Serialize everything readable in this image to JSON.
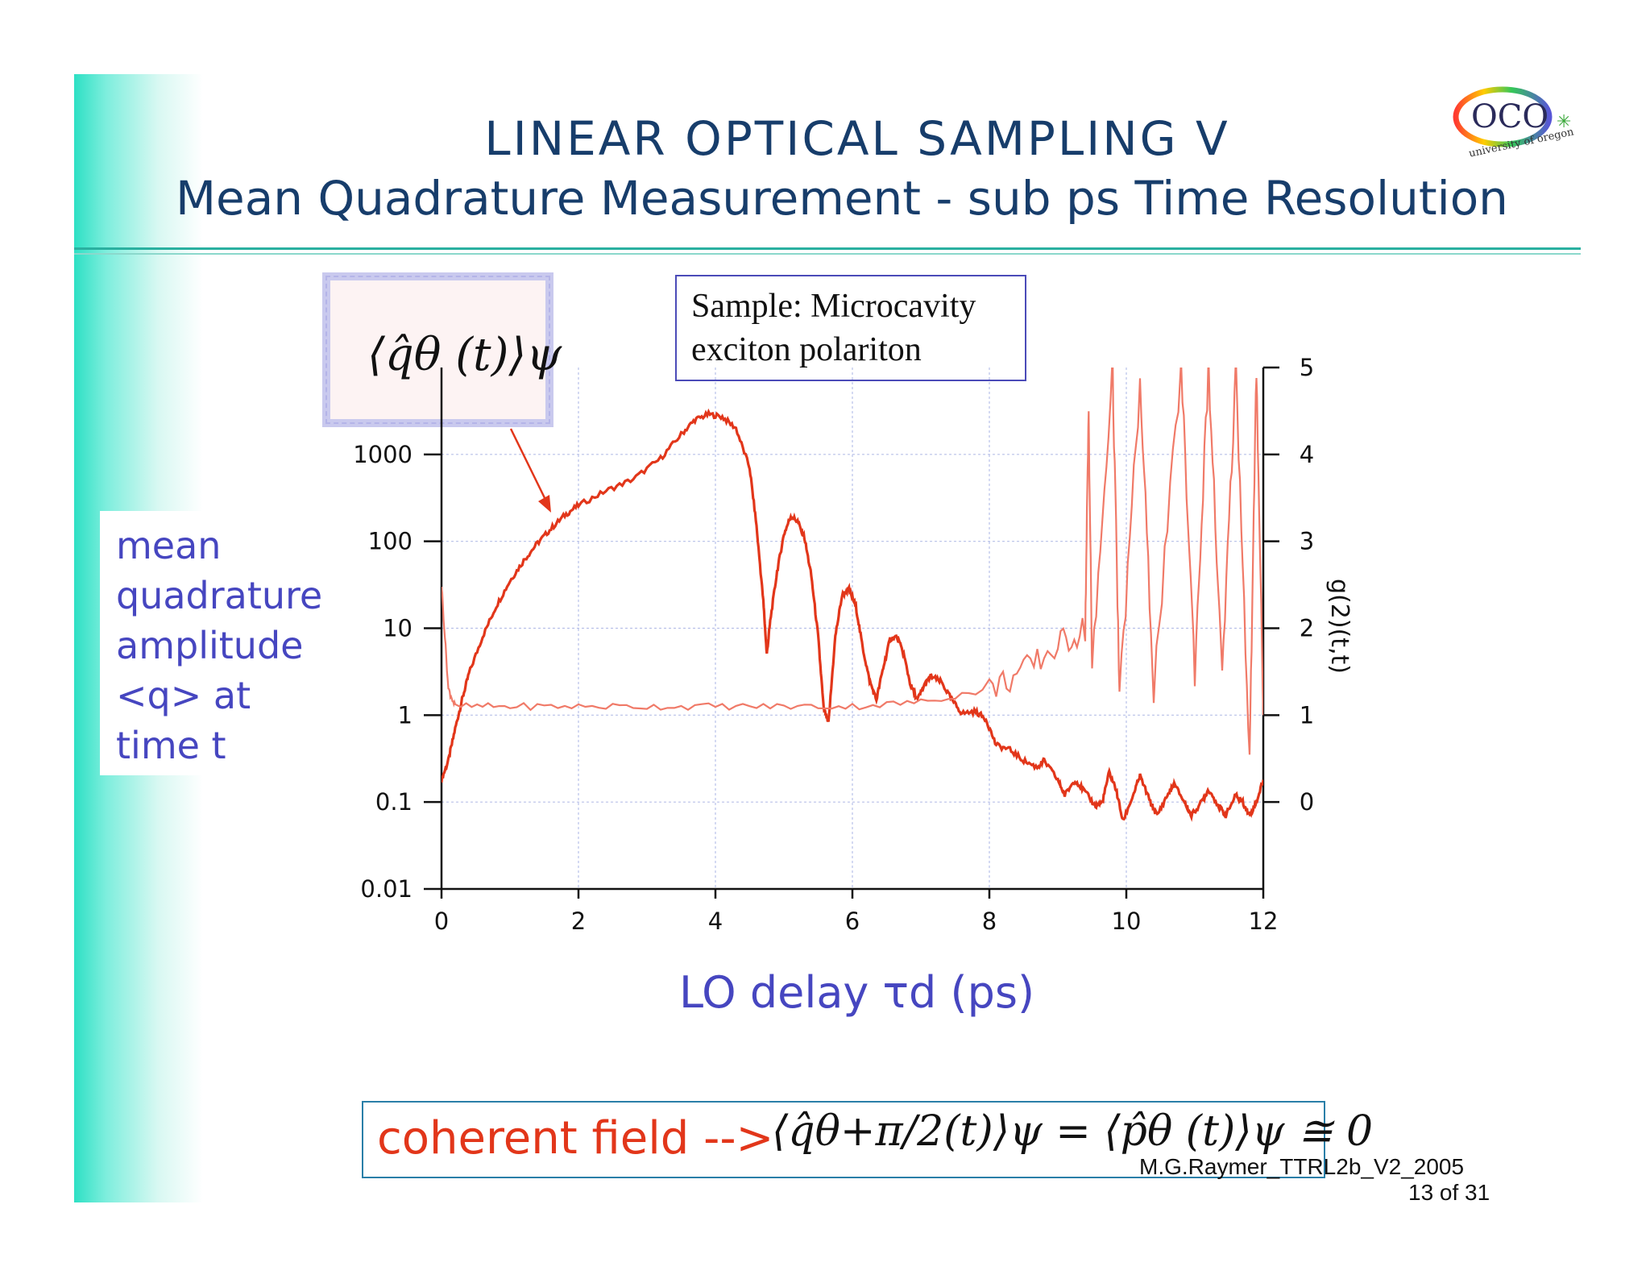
{
  "slide": {
    "title_line1": "LINEAR  OPTICAL  SAMPLING  V",
    "title_line2": "Mean Quadrature Measurement - sub ps Time Resolution",
    "logo_text": "OCO",
    "logo_subtext": "university of oregon",
    "equation_label": "⟨q̂θ (t)⟩ψ",
    "sample_line1": "Sample: Microcavity",
    "sample_line2": "exciton polariton",
    "y_label_lines": [
      "mean",
      "quadrature",
      "amplitude",
      "<q> at",
      "time t"
    ],
    "x_label": "LO delay τd (ps)",
    "right_axis_label": "g(2)(t,t)",
    "coherent_text": "coherent field -->",
    "coherent_equation": "⟨q̂θ+π/2(t)⟩ψ = ⟨p̂θ (t)⟩ψ ≅ 0",
    "footer_line1": "M.G.Raymer_TTRL2b_V2_2005",
    "footer_line2": "13 of 31"
  },
  "colors": {
    "title": "#173d6b",
    "label_blue": "#4646c0",
    "curve_red": "#e2361a",
    "curve_light": "#f07a68",
    "accent_teal": "#2de0c4"
  },
  "chart_data": {
    "type": "line",
    "x": {
      "label": "LO delay τd (ps)",
      "range": [
        0,
        12
      ],
      "ticks": [
        0,
        2,
        4,
        6,
        8,
        10,
        12
      ]
    },
    "y_left": {
      "label": "mean quadrature amplitude <q> at time t",
      "scale": "log",
      "range": [
        0.01,
        10000
      ],
      "ticks": [
        "0.01",
        "0.1",
        "1",
        "10",
        "100",
        "1000"
      ]
    },
    "y_right": {
      "label": "g(2)(t,t)",
      "range": [
        -1,
        5
      ],
      "ticks": [
        "0",
        "1",
        "2",
        "3",
        "4",
        "5"
      ]
    },
    "series": [
      {
        "axis": "left",
        "points": [
          [
            0,
            0.18
          ],
          [
            0.1,
            0.3
          ],
          [
            0.2,
            0.7
          ],
          [
            0.3,
            1.5
          ],
          [
            0.4,
            3
          ],
          [
            0.6,
            8
          ],
          [
            0.8,
            18
          ],
          [
            1.0,
            35
          ],
          [
            1.2,
            60
          ],
          [
            1.4,
            95
          ],
          [
            1.6,
            140
          ],
          [
            1.8,
            200
          ],
          [
            2.0,
            260
          ],
          [
            2.4,
            380
          ],
          [
            2.8,
            520
          ],
          [
            3.2,
            900
          ],
          [
            3.5,
            1700
          ],
          [
            3.7,
            2500
          ],
          [
            3.9,
            2900
          ],
          [
            4.1,
            2700
          ],
          [
            4.3,
            2000
          ],
          [
            4.5,
            700
          ],
          [
            4.6,
            150
          ],
          [
            4.7,
            20
          ],
          [
            4.75,
            5
          ],
          [
            4.8,
            12
          ],
          [
            4.9,
            45
          ],
          [
            5.0,
            120
          ],
          [
            5.1,
            195
          ],
          [
            5.2,
            170
          ],
          [
            5.3,
            110
          ],
          [
            5.4,
            40
          ],
          [
            5.5,
            8
          ],
          [
            5.58,
            1.2
          ],
          [
            5.65,
            0.8
          ],
          [
            5.75,
            8
          ],
          [
            5.85,
            24
          ],
          [
            5.95,
            28
          ],
          [
            6.05,
            18
          ],
          [
            6.15,
            6
          ],
          [
            6.25,
            2.5
          ],
          [
            6.35,
            1.5
          ],
          [
            6.45,
            3.5
          ],
          [
            6.55,
            7.5
          ],
          [
            6.65,
            8
          ],
          [
            6.75,
            5
          ],
          [
            6.85,
            2.2
          ],
          [
            6.95,
            1.5
          ],
          [
            7.05,
            2.2
          ],
          [
            7.15,
            2.8
          ],
          [
            7.3,
            2.4
          ],
          [
            7.45,
            1.5
          ],
          [
            7.6,
            1.05
          ],
          [
            7.8,
            1.1
          ],
          [
            7.95,
            0.9
          ],
          [
            8.1,
            0.45
          ],
          [
            8.3,
            0.4
          ],
          [
            8.5,
            0.3
          ],
          [
            8.7,
            0.25
          ],
          [
            8.8,
            0.3
          ],
          [
            9.0,
            0.18
          ],
          [
            9.1,
            0.12
          ],
          [
            9.25,
            0.18
          ],
          [
            9.4,
            0.13
          ],
          [
            9.55,
            0.09
          ],
          [
            9.65,
            0.1
          ],
          [
            9.75,
            0.22
          ],
          [
            9.85,
            0.14
          ],
          [
            9.95,
            0.06
          ],
          [
            10.1,
            0.12
          ],
          [
            10.2,
            0.2
          ],
          [
            10.35,
            0.1
          ],
          [
            10.45,
            0.07
          ],
          [
            10.6,
            0.12
          ],
          [
            10.7,
            0.16
          ],
          [
            10.85,
            0.1
          ],
          [
            10.95,
            0.07
          ],
          [
            11.1,
            0.1
          ],
          [
            11.2,
            0.14
          ],
          [
            11.35,
            0.09
          ],
          [
            11.45,
            0.07
          ],
          [
            11.6,
            0.12
          ],
          [
            11.7,
            0.1
          ],
          [
            11.8,
            0.07
          ],
          [
            11.9,
            0.1
          ],
          [
            12.0,
            0.18
          ]
        ]
      },
      {
        "axis": "right",
        "points": [
          [
            0,
            2.5
          ],
          [
            0.1,
            1.3
          ],
          [
            0.2,
            1.1
          ],
          [
            1,
            1.1
          ],
          [
            2,
            1.1
          ],
          [
            3,
            1.1
          ],
          [
            4,
            1.1
          ],
          [
            5,
            1.1
          ],
          [
            6,
            1.1
          ],
          [
            7,
            1.15
          ],
          [
            8,
            1.3
          ],
          [
            8.5,
            1.5
          ],
          [
            9,
            1.8
          ],
          [
            9.4,
            2.0
          ],
          [
            9.45,
            4.5
          ],
          [
            9.5,
            1.5
          ],
          [
            9.8,
            5
          ],
          [
            9.9,
            1.2
          ],
          [
            10.2,
            4.8
          ],
          [
            10.4,
            1.3
          ],
          [
            10.8,
            5
          ],
          [
            11,
            1.5
          ],
          [
            11.2,
            5
          ],
          [
            11.4,
            1.4
          ],
          [
            11.6,
            5
          ],
          [
            11.8,
            0.5
          ],
          [
            11.9,
            5
          ],
          [
            12.0,
            1.0
          ]
        ]
      }
    ],
    "annotation_arrow": "from ⟨q̂θ(t)⟩ψ label to rising curve near τ≈1.6 ps"
  }
}
